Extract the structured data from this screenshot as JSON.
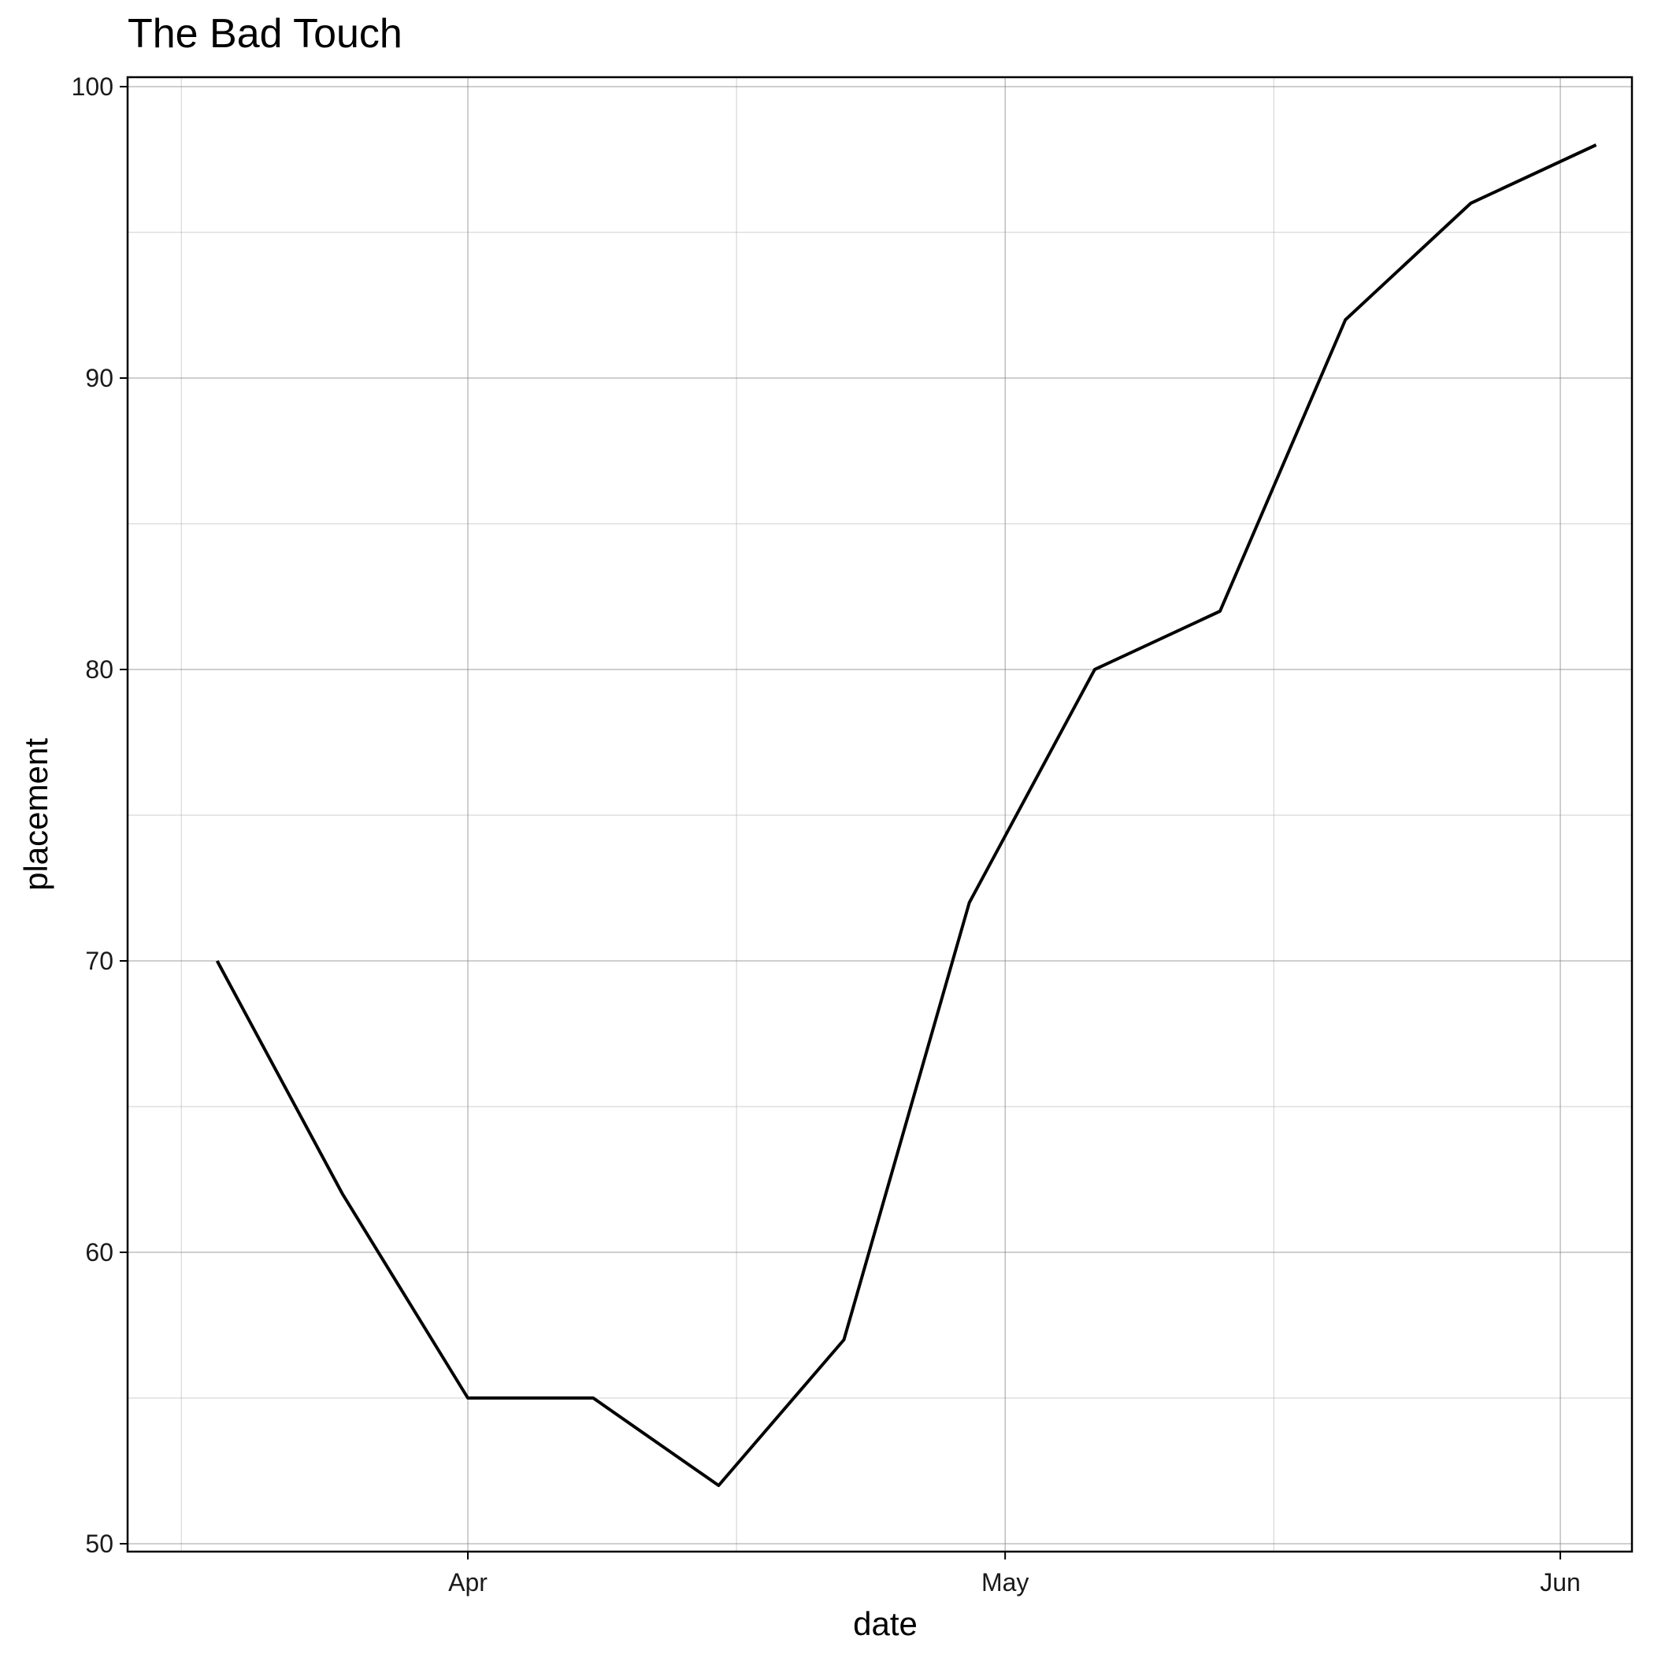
{
  "chart_data": {
    "type": "line",
    "title": "The Bad Touch",
    "xlabel": "date",
    "ylabel": "placement",
    "x_scale": "date",
    "ylim": [
      50,
      100
    ],
    "xlim": [
      "2000-03-13",
      "2000-06-05"
    ],
    "y_major_ticks": [
      50,
      60,
      70,
      80,
      90,
      100
    ],
    "y_minor_ticks": [
      55,
      65,
      75,
      85,
      95
    ],
    "x_major_ticks": [
      {
        "date": "2000-04-01",
        "label": "Apr"
      },
      {
        "date": "2000-05-01",
        "label": "May"
      },
      {
        "date": "2000-06-01",
        "label": "Jun"
      }
    ],
    "x_minor_ticks": [
      "2000-03-16",
      "2000-04-16",
      "2000-05-16"
    ],
    "grid": true,
    "line_color": "#000000",
    "series": [
      {
        "x": [
          "2000-03-18",
          "2000-03-25",
          "2000-04-01",
          "2000-04-08",
          "2000-04-15",
          "2000-04-22",
          "2000-04-29",
          "2000-05-06",
          "2000-05-13",
          "2000-05-20",
          "2000-05-27",
          "2000-06-03"
        ],
        "values": [
          70,
          62,
          55,
          55,
          52,
          57,
          72,
          80,
          82,
          92,
          96,
          98
        ]
      }
    ]
  }
}
